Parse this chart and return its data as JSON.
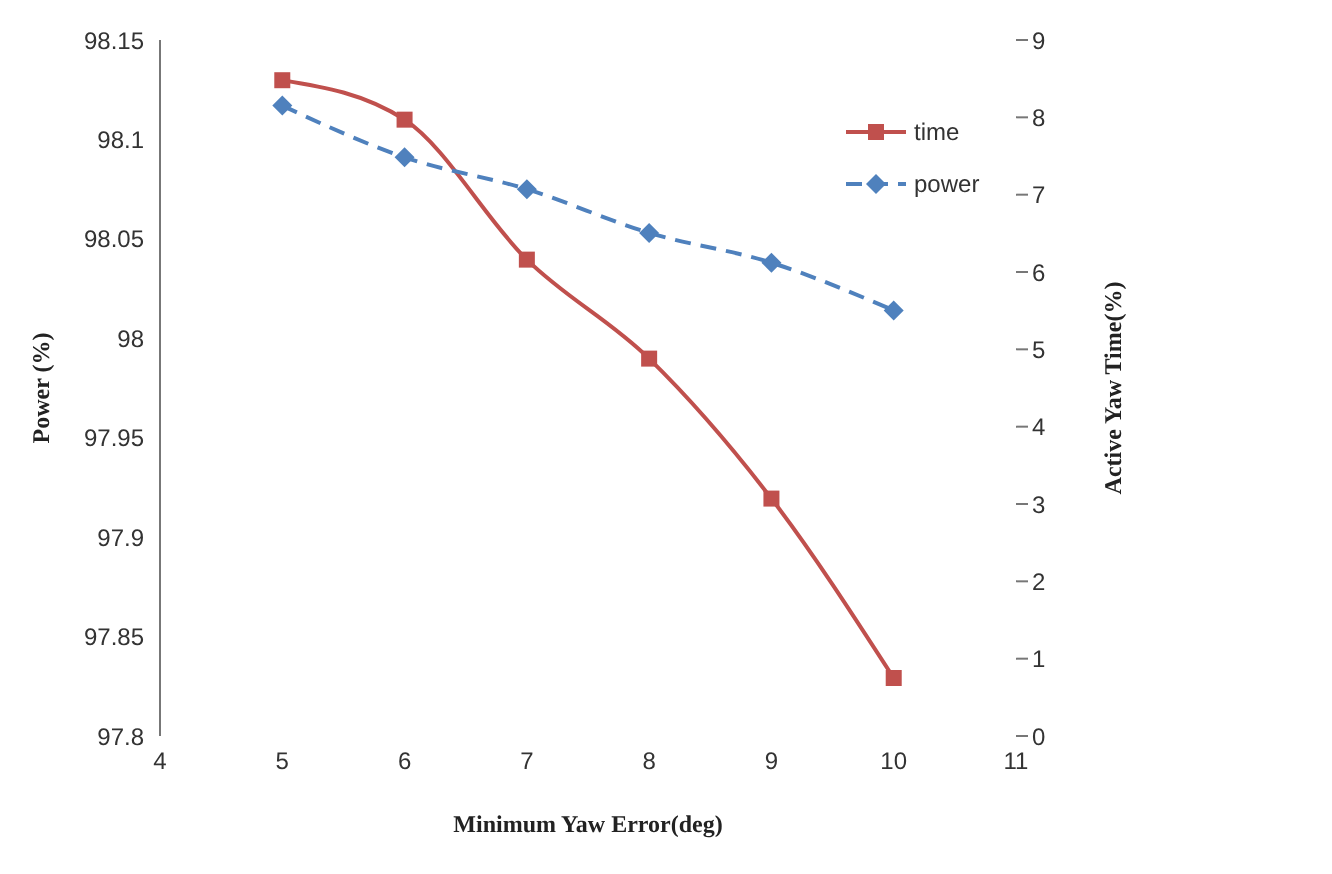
{
  "chart_data": {
    "type": "line",
    "xlabel": "Minimum Yaw Error(deg)",
    "ylabel": "Power (%)",
    "y2label": "Active Yaw Time(%)",
    "x": [
      5,
      6,
      7,
      8,
      9,
      10
    ],
    "series": [
      {
        "name": "time",
        "color": "#c0504d",
        "axis": "y2",
        "marker": "square",
        "line_style": "solid",
        "values": [
          8.48,
          7.97,
          6.16,
          4.88,
          3.07,
          0.75
        ]
      },
      {
        "name": "power",
        "color": "#4f81bd",
        "marker": "diamond",
        "line_style": "dashed",
        "values": [
          98.117,
          98.091,
          98.075,
          98.053,
          98.038,
          98.014
        ]
      }
    ],
    "xlim": [
      4,
      11
    ],
    "xticks": [
      4,
      5,
      6,
      7,
      8,
      9,
      10,
      11
    ],
    "ylim": [
      97.8,
      98.15
    ],
    "yticks": [
      97.8,
      97.85,
      97.9,
      97.95,
      98,
      98.05,
      98.1,
      98.15
    ],
    "y2lim": [
      0,
      9
    ],
    "y2ticks": [
      0,
      1,
      2,
      3,
      4,
      5,
      6,
      7,
      8,
      9
    ],
    "grid": false,
    "legend": "top right"
  }
}
